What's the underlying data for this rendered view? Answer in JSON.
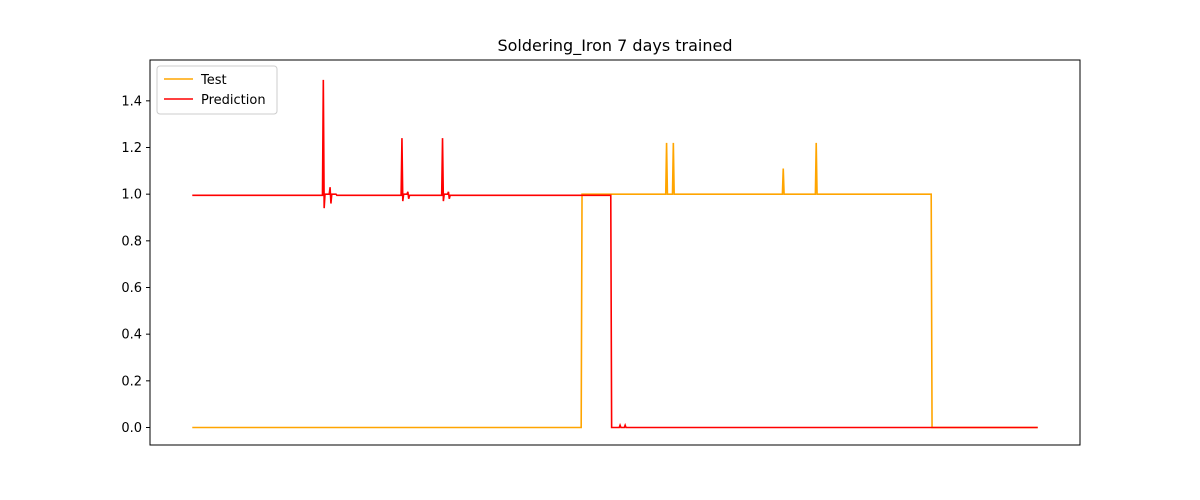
{
  "chart_data": {
    "type": "line",
    "title": "Soldering_Iron 7 days trained",
    "xlabel": "",
    "ylabel": "",
    "xlim": [
      -50,
      1050
    ],
    "ylim": [
      -0.075,
      1.575
    ],
    "x_ticks_visible": false,
    "yticks": [
      0.0,
      0.2,
      0.4,
      0.6,
      0.8,
      1.0,
      1.2,
      1.4
    ],
    "ytick_labels": [
      "0.0",
      "0.2",
      "0.4",
      "0.6",
      "0.8",
      "1.0",
      "1.2",
      "1.4"
    ],
    "grid": false,
    "legend_position": "top-left",
    "series": [
      {
        "name": "Test",
        "color": "#FFA500",
        "points": [
          [
            0,
            0
          ],
          [
            460,
            0
          ],
          [
            461,
            1
          ],
          [
            560,
            1
          ],
          [
            561,
            1.22
          ],
          [
            562,
            1
          ],
          [
            568,
            1
          ],
          [
            569,
            1.22
          ],
          [
            570,
            1
          ],
          [
            698,
            1
          ],
          [
            699,
            1.11
          ],
          [
            700,
            1
          ],
          [
            737,
            1
          ],
          [
            738,
            1.22
          ],
          [
            739,
            1
          ],
          [
            874,
            1
          ],
          [
            875,
            0
          ],
          [
            1000,
            0
          ]
        ]
      },
      {
        "name": "Prediction",
        "color": "#FF0000",
        "points": [
          [
            0,
            0.995
          ],
          [
            154,
            0.995
          ],
          [
            155,
            1.49
          ],
          [
            156,
            0.94
          ],
          [
            157,
            1.0
          ],
          [
            162,
            1.0
          ],
          [
            163,
            1.03
          ],
          [
            164,
            0.96
          ],
          [
            165,
            1.0
          ],
          [
            170,
            1.0
          ],
          [
            171,
            0.995
          ],
          [
            247,
            0.995
          ],
          [
            248,
            1.24
          ],
          [
            249,
            0.97
          ],
          [
            250,
            1.0
          ],
          [
            254,
            1.0
          ],
          [
            255,
            1.01
          ],
          [
            256,
            0.98
          ],
          [
            257,
            0.995
          ],
          [
            295,
            0.995
          ],
          [
            296,
            1.24
          ],
          [
            297,
            0.97
          ],
          [
            298,
            1.0
          ],
          [
            302,
            1.0
          ],
          [
            303,
            1.01
          ],
          [
            304,
            0.98
          ],
          [
            305,
            0.995
          ],
          [
            495,
            0.995
          ],
          [
            496,
            0.0
          ],
          [
            505,
            0.0
          ],
          [
            506,
            0.01
          ],
          [
            507,
            0.0
          ],
          [
            511,
            0.0
          ],
          [
            512,
            0.01
          ],
          [
            513,
            0.0
          ],
          [
            1000,
            0.0
          ]
        ]
      }
    ]
  }
}
